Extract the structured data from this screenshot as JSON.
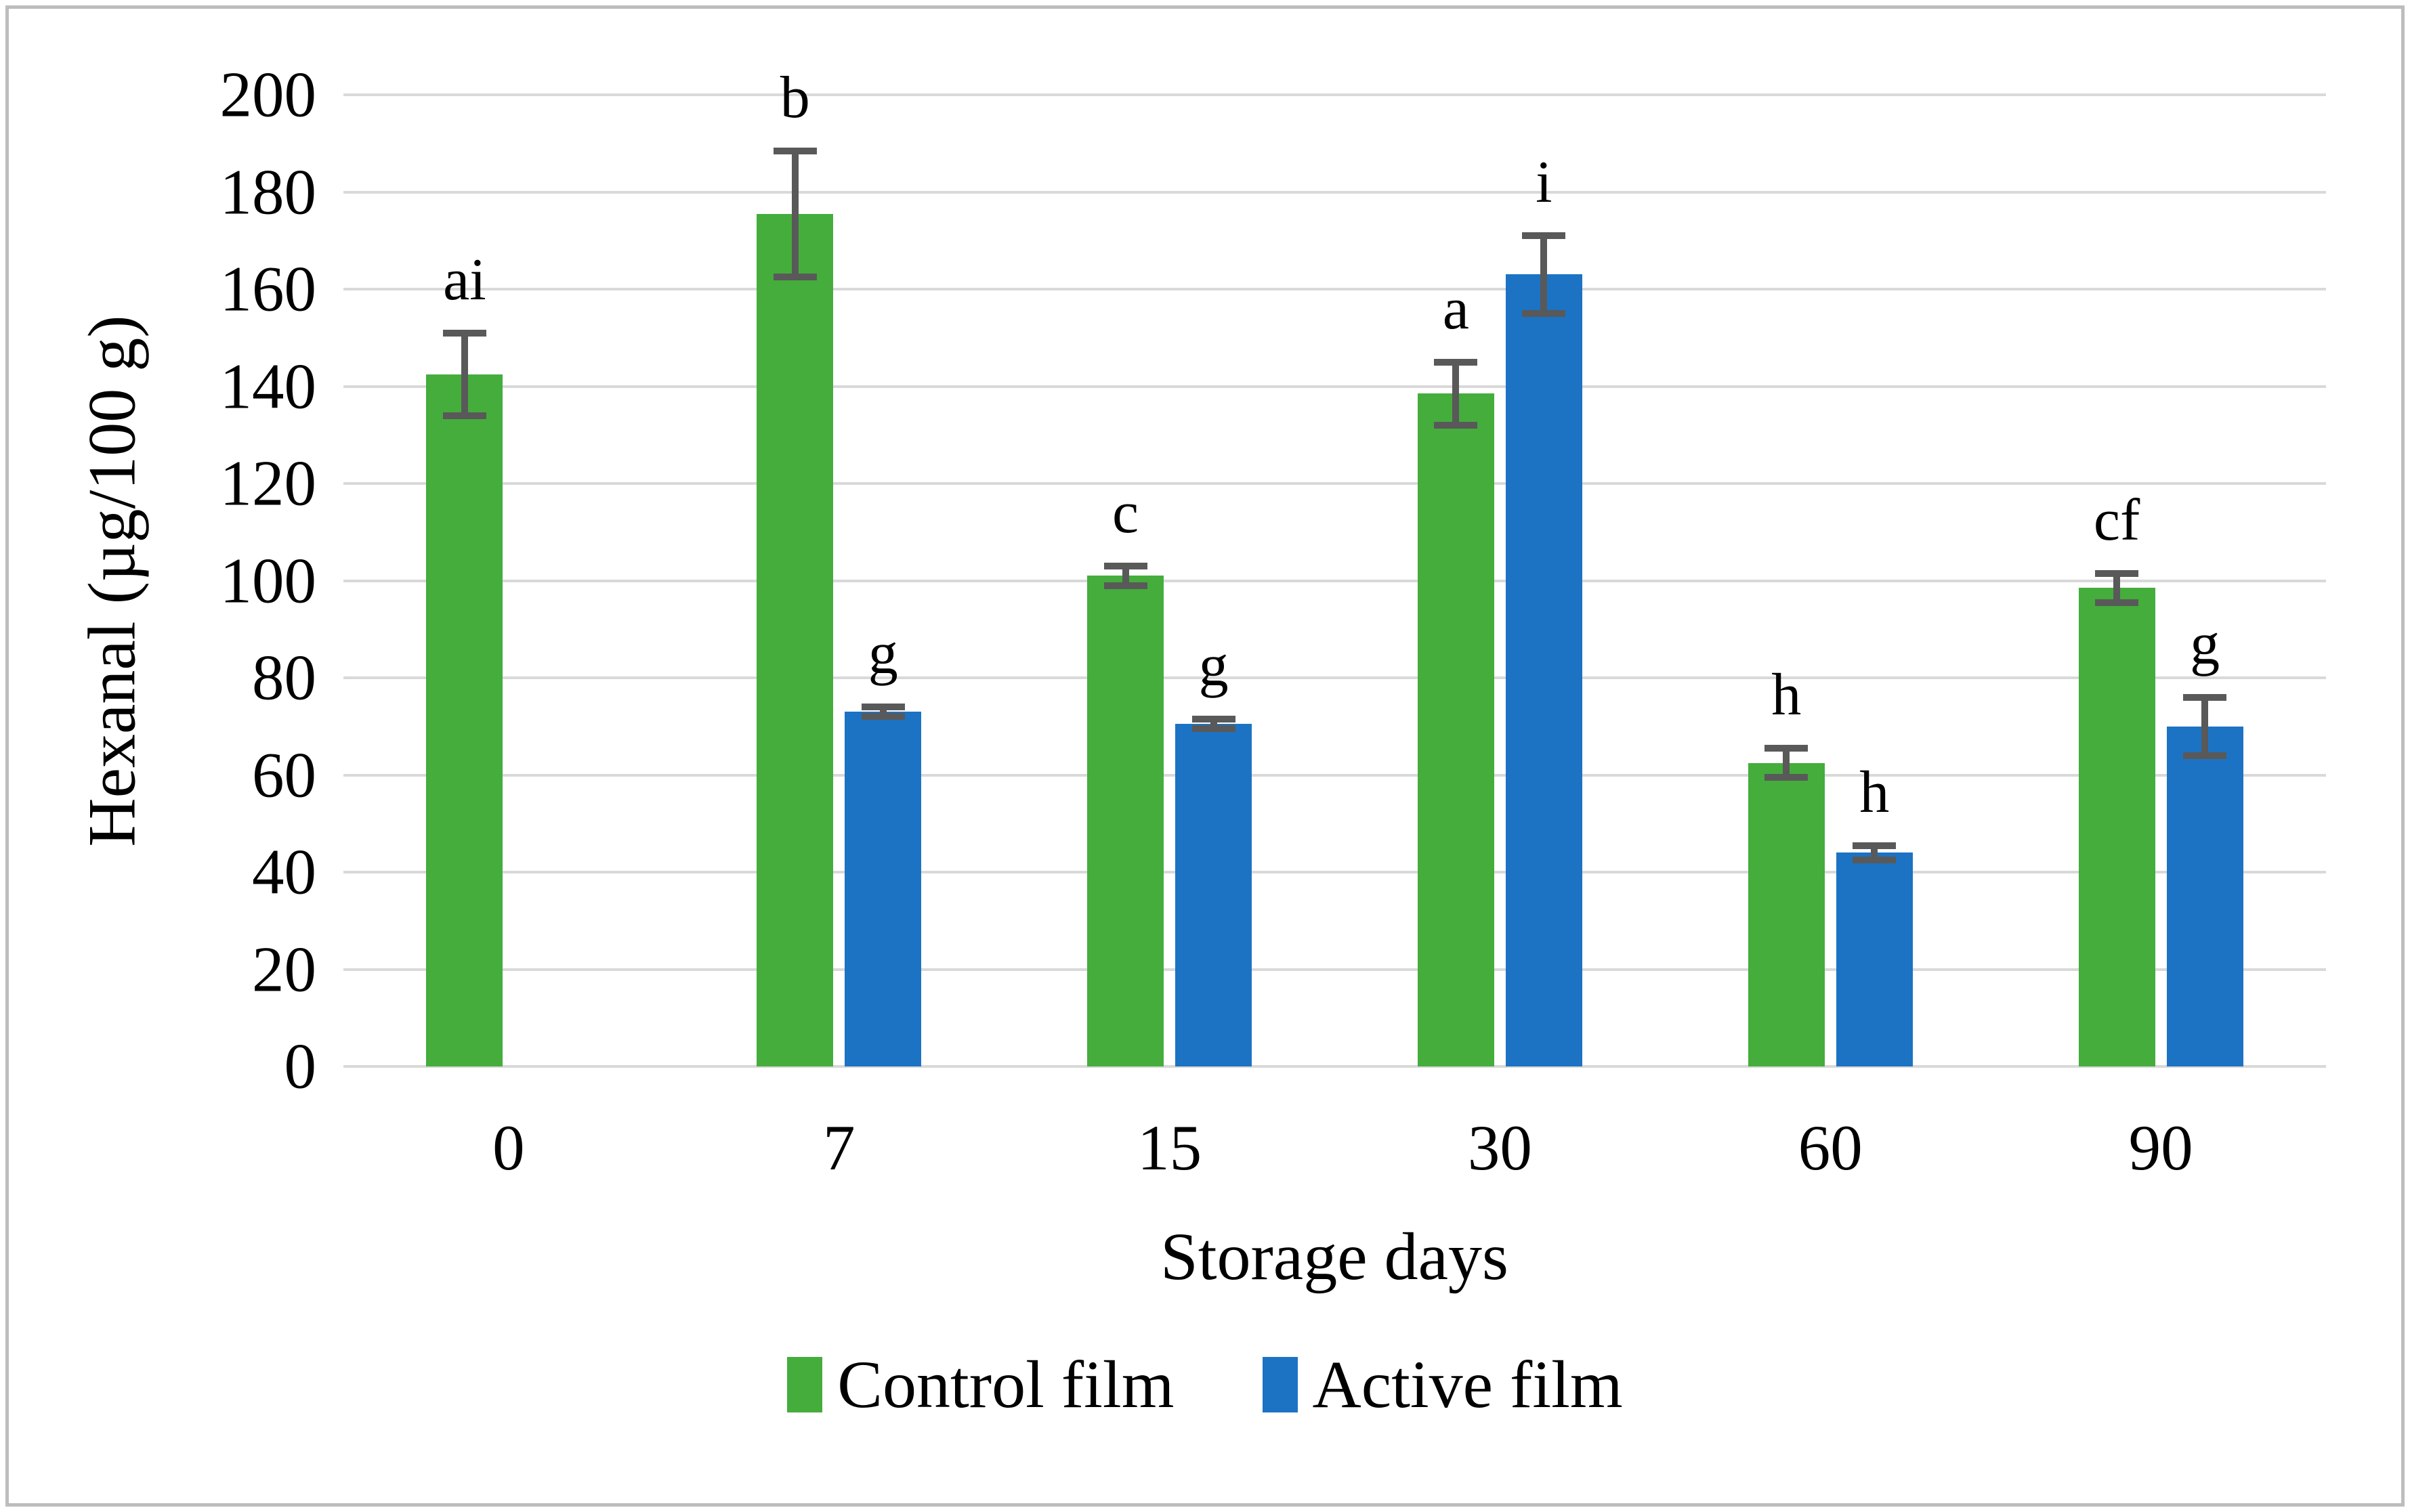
{
  "figure": {
    "y_axis_title": "Hexanal (µg/100 g)",
    "x_axis_title": "Storage days"
  },
  "legend": {
    "items": [
      {
        "label": "Control film",
        "color": "#44AD3C"
      },
      {
        "label": "Active film",
        "color": "#1C73C4"
      }
    ]
  },
  "colors": {
    "control": "#44AD3C",
    "active": "#1C73C4",
    "error_bar": "#595959",
    "gridline": "#D9D9D9",
    "border": "#BDBDBD",
    "text": "#000000"
  },
  "chart_data": {
    "type": "bar",
    "title": "",
    "xlabel": "Storage days",
    "ylabel": "Hexanal (µg/100 g)",
    "categories": [
      "0",
      "7",
      "15",
      "30",
      "60",
      "90"
    ],
    "y_ticks": [
      0,
      20,
      40,
      60,
      80,
      100,
      120,
      140,
      160,
      180,
      200
    ],
    "ylim": [
      0,
      200
    ],
    "grid": true,
    "legend_position": "bottom",
    "series": [
      {
        "name": "Control film",
        "color": "#44AD3C",
        "values": [
          142.5,
          175.5,
          101,
          138.5,
          62.5,
          98.5
        ],
        "errors": [
          8.5,
          13,
          2,
          6.5,
          3,
          3
        ],
        "letters": [
          "ai",
          "b",
          "c",
          "a",
          "h",
          "cf"
        ]
      },
      {
        "name": "Active film",
        "color": "#1C73C4",
        "values": [
          null,
          73,
          70.5,
          163,
          44,
          70
        ],
        "errors": [
          null,
          1,
          1,
          8,
          1.5,
          6
        ],
        "letters": [
          null,
          "g",
          "g",
          "i",
          "h",
          "g"
        ]
      }
    ]
  }
}
